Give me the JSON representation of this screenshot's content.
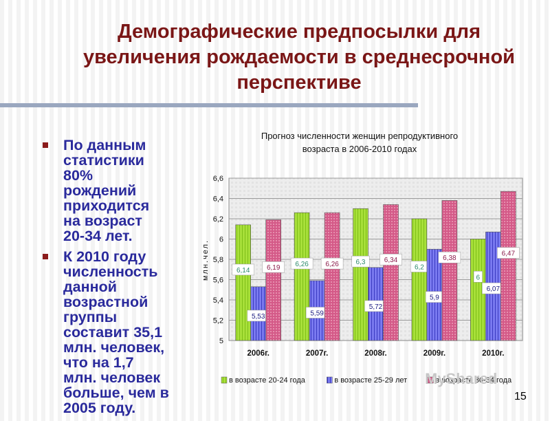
{
  "slide": {
    "title": "Демографические предпосылки для увеличения рождаемости в среднесрочной перспективе",
    "bullets": [
      {
        "text": "По данным\nстатистики\n80%\nрождений\nприходится\nна возраст\n20-34 лет."
      },
      {
        "text": "К 2010 году\nчисленность\nданной\nвозрастной\nгруппы\nсоставит 35,1\nмлн. человек,\nчто на 1,7\nмлн. человек\nбольше, чем в\n2005 году."
      }
    ],
    "page_number": "15",
    "watermark": "MyShared"
  },
  "chart_data": {
    "type": "bar",
    "title": "Прогноз численности женщин репродуктивного возраста в 2006-2010 годах",
    "title_lines": [
      "Прогноз численности женщин репродуктивного",
      "возраста в 2006-2010 годах"
    ],
    "ylabel": "млн.чел.",
    "xlabel": "",
    "categories": [
      "2006г.",
      "2007г.",
      "2008г.",
      "2009г.",
      "2010г."
    ],
    "ylim": [
      5,
      6.6
    ],
    "yticks": [
      "5",
      "5,2",
      "5,4",
      "5,6",
      "5,8",
      "6",
      "6,2",
      "6,4",
      "6,6"
    ],
    "legend_position": "bottom",
    "grid": true,
    "series": [
      {
        "name": "в возрасте 20-24 года",
        "values": [
          6.14,
          6.26,
          6.3,
          6.2,
          6.0
        ],
        "labels": [
          "6,14",
          "6,26",
          "6,3",
          "6,2",
          "6"
        ],
        "color": "#9ad42a",
        "label_color": "#2a8a6a"
      },
      {
        "name": "в возрасте 25-29 лет",
        "values": [
          5.53,
          5.59,
          5.72,
          5.9,
          6.07
        ],
        "labels": [
          "5,53",
          "5,59",
          "5,72",
          "5,9",
          "6,07"
        ],
        "color": "#5a5ae0",
        "label_color": "#1a1a80"
      },
      {
        "name": "в возрасте 30-34 года",
        "values": [
          6.19,
          6.26,
          6.34,
          6.38,
          6.47
        ],
        "labels": [
          "6,19",
          "6,26",
          "6,34",
          "6,38",
          "6,47"
        ],
        "color": "#c03a6a",
        "label_color": "#8a1a4a"
      }
    ]
  }
}
